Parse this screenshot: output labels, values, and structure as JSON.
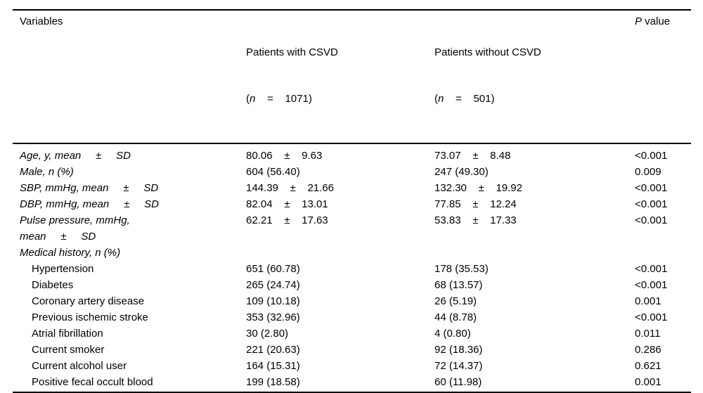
{
  "table": {
    "header": {
      "col_variables": "Variables",
      "col_csvd": {
        "line1": "Patients with CSVD",
        "open": "(",
        "n": "n",
        "rest": "    =    1071)"
      },
      "col_no_csvd": {
        "line1": "Patients without CSVD",
        "open": "(",
        "n": "n",
        "rest": "    =    501)"
      },
      "col_p": {
        "italic": "P",
        "rest": " value"
      }
    },
    "rows": [
      {
        "label": "Age, y, mean     ±     SD",
        "csvd": "80.06    ±    9.63",
        "no_csvd": "73.07    ±    8.48",
        "p": "<0.001"
      },
      {
        "label": "Male, n (%)",
        "csvd": "604 (56.40)",
        "no_csvd": "247 (49.30)",
        "p": "0.009"
      },
      {
        "label": "SBP, mmHg, mean     ±     SD",
        "csvd": "144.39    ±    21.66",
        "no_csvd": "132.30    ±    19.92",
        "p": "<0.001"
      },
      {
        "label": "DBP, mmHg, mean     ±     SD",
        "csvd": "82.04    ±    13.01",
        "no_csvd": "77.85    ±    12.24",
        "p": "<0.001"
      },
      {
        "label": "Pulse pressure, mmHg,\nmean     ±     SD",
        "csvd": "62.21    ±    17.63",
        "no_csvd": "53.83    ±    17.33",
        "p": "<0.001"
      },
      {
        "label": "Medical history, n (%)",
        "csvd": "",
        "no_csvd": "",
        "p": ""
      },
      {
        "label": "Hypertension",
        "csvd": "651 (60.78)",
        "no_csvd": "178 (35.53)",
        "p": "<0.001"
      },
      {
        "label": "Diabetes",
        "csvd": "265 (24.74)",
        "no_csvd": "68 (13.57)",
        "p": "<0.001"
      },
      {
        "label": "Coronary artery disease",
        "csvd": "109 (10.18)",
        "no_csvd": "26 (5.19)",
        "p": "0.001"
      },
      {
        "label": "Previous ischemic stroke",
        "csvd": "353 (32.96)",
        "no_csvd": "44 (8.78)",
        "p": "<0.001"
      },
      {
        "label": "Atrial fibrillation",
        "csvd": "30 (2.80)",
        "no_csvd": "4 (0.80)",
        "p": "0.011"
      },
      {
        "label": "Current smoker",
        "csvd": "221 (20.63)",
        "no_csvd": "92 (18.36)",
        "p": "0.286"
      },
      {
        "label": "Current alcohol user",
        "csvd": "164 (15.31)",
        "no_csvd": "72 (14.37)",
        "p": "0.621"
      },
      {
        "label": "Positive fecal occult blood",
        "csvd": "199 (18.58)",
        "no_csvd": "60 (11.98)",
        "p": "0.001"
      }
    ]
  }
}
